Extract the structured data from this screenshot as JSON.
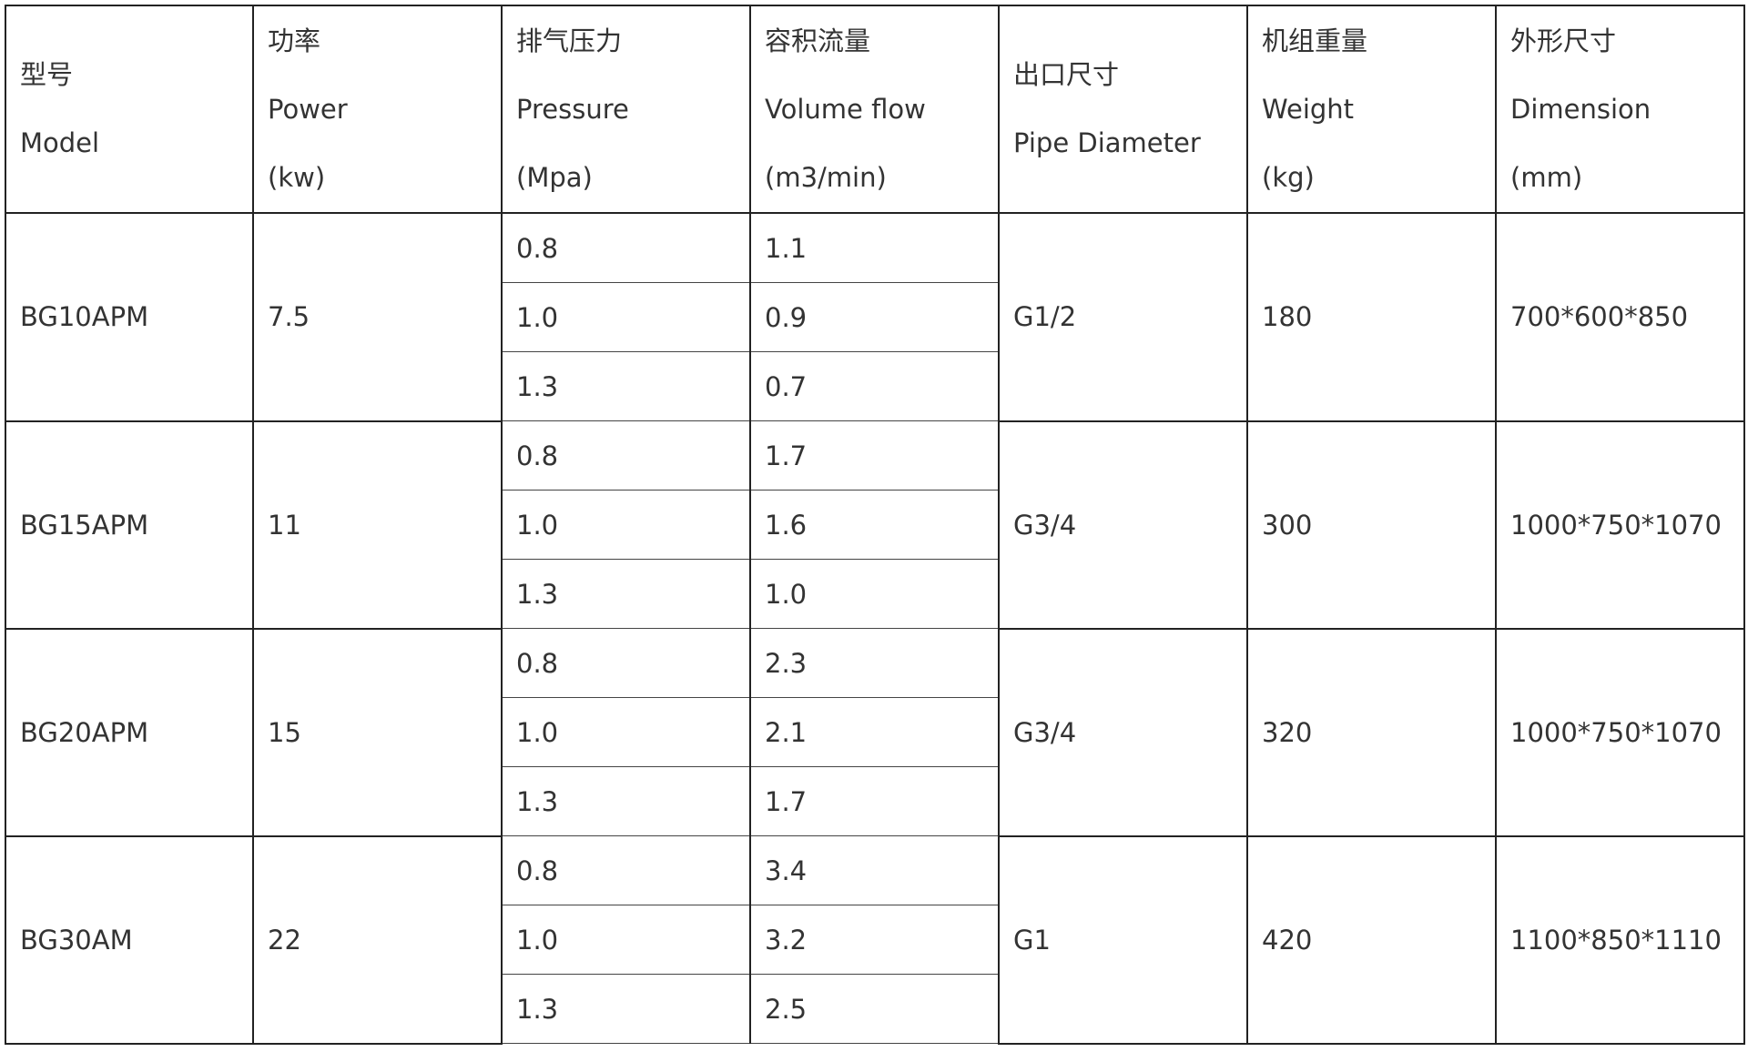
{
  "headers": [
    {
      "lines": [
        "型号",
        "Model"
      ]
    },
    {
      "lines": [
        "功率",
        "Power",
        "(kw)"
      ]
    },
    {
      "lines": [
        "排气压力",
        "Pressure",
        "(Mpa)"
      ]
    },
    {
      "lines": [
        "容积流量",
        "Volume flow",
        "(m3/min)"
      ]
    },
    {
      "lines": [
        "出口尺寸",
        "Pipe Diameter"
      ]
    },
    {
      "lines": [
        "机组重量",
        "Weight",
        "(kg)"
      ]
    },
    {
      "lines": [
        "外形尺寸",
        "Dimension",
        "(mm)"
      ]
    }
  ],
  "rows": [
    {
      "model": "BG10APM",
      "power": "7.5",
      "options": [
        {
          "pressure": "0.8",
          "flow": "1.1"
        },
        {
          "pressure": "1.0",
          "flow": "0.9"
        },
        {
          "pressure": "1.3",
          "flow": "0.7"
        }
      ],
      "pipe": "G1/2",
      "weight": "180",
      "dimension": "700*600*850"
    },
    {
      "model": "BG15APM",
      "power": "11",
      "options": [
        {
          "pressure": "0.8",
          "flow": "1.7"
        },
        {
          "pressure": "1.0",
          "flow": "1.6"
        },
        {
          "pressure": "1.3",
          "flow": "1.0"
        }
      ],
      "pipe": "G3/4",
      "weight": "300",
      "dimension": "1000*750*1070"
    },
    {
      "model": "BG20APM",
      "power": "15",
      "options": [
        {
          "pressure": "0.8",
          "flow": "2.3"
        },
        {
          "pressure": "1.0",
          "flow": "2.1"
        },
        {
          "pressure": "1.3",
          "flow": "1.7"
        }
      ],
      "pipe": "G3/4",
      "weight": "320",
      "dimension": "1000*750*1070"
    },
    {
      "model": "BG30AM",
      "power": "22",
      "options": [
        {
          "pressure": "0.8",
          "flow": "3.4"
        },
        {
          "pressure": "1.0",
          "flow": "3.2"
        },
        {
          "pressure": "1.3",
          "flow": "2.5"
        }
      ],
      "pipe": "G1",
      "weight": "420",
      "dimension": "1100*850*1110"
    }
  ]
}
